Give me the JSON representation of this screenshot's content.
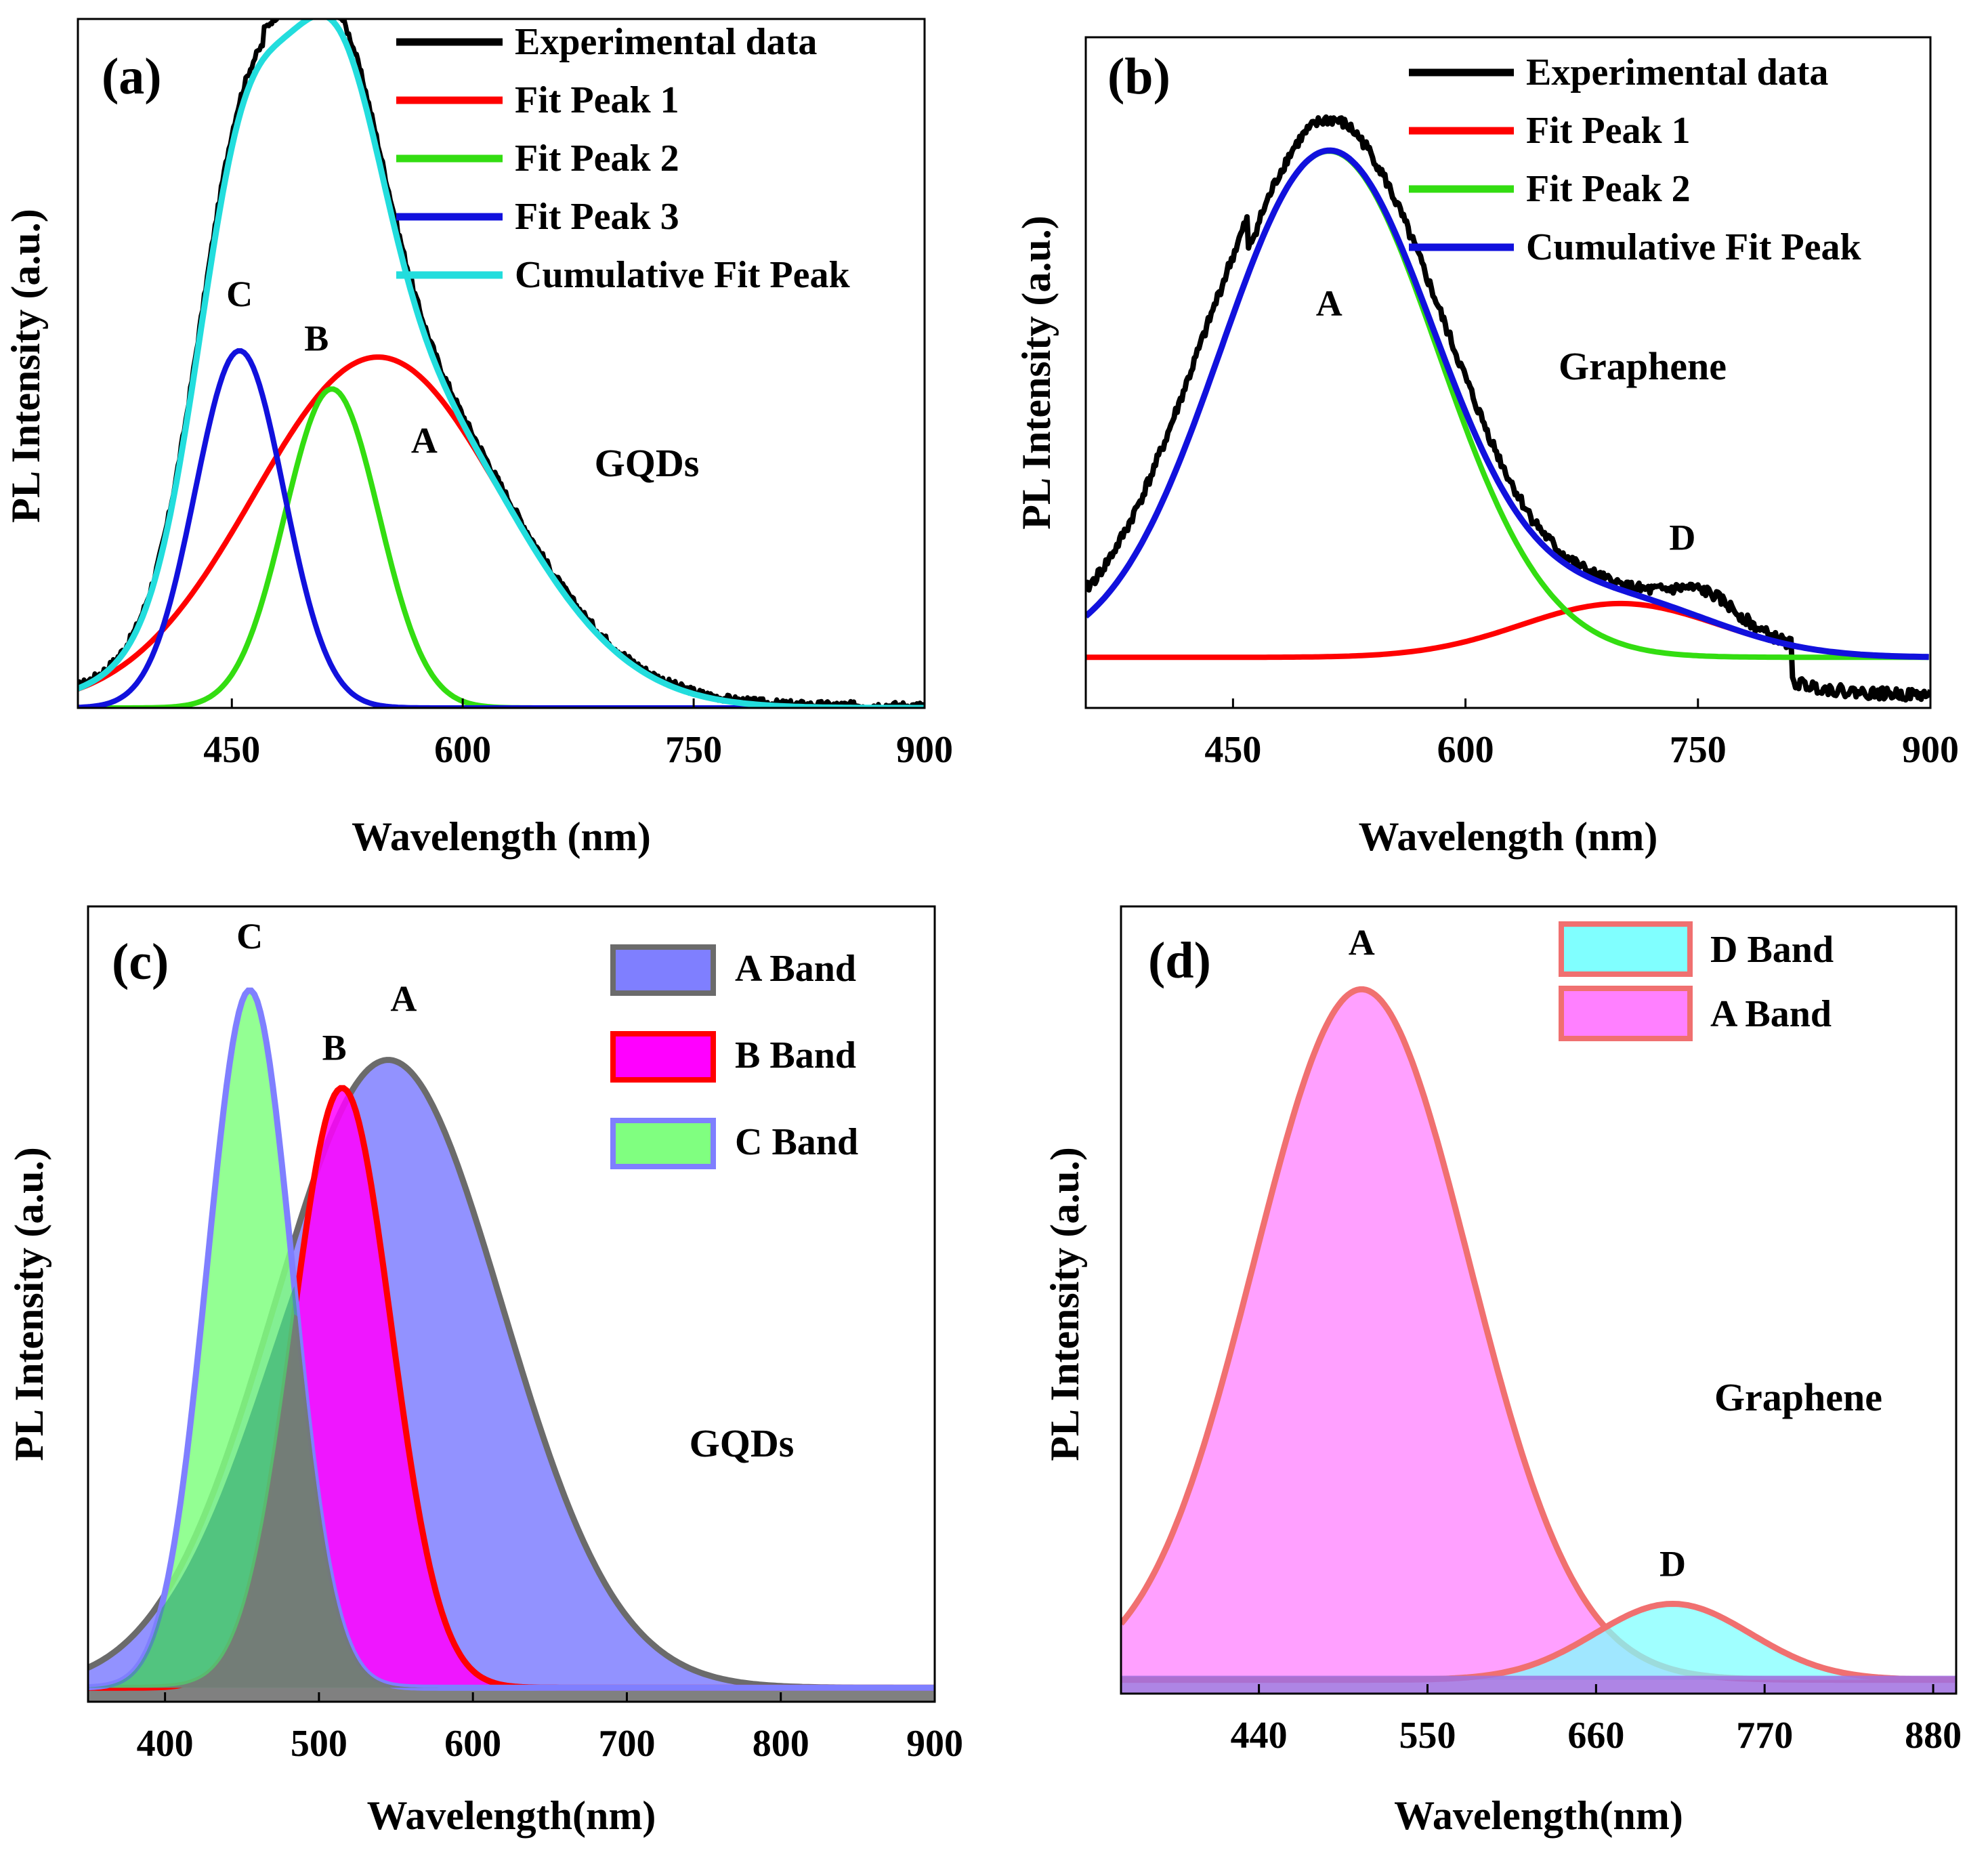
{
  "chart_data": [
    {
      "id": "a",
      "type": "line",
      "panel_label": "(a)",
      "xlabel": "Wavelength (nm)",
      "ylabel": "PL Intensity (a.u.)",
      "xlim": [
        350,
        900
      ],
      "ylim": [
        0,
        1.08
      ],
      "xticks": [
        450,
        600,
        750,
        900
      ],
      "sample_label": "GQDs",
      "series": [
        {
          "name": "Experimental data",
          "color": "#000000",
          "kind": "noisy-sum"
        },
        {
          "name": "Fit Peak 1",
          "color": "#ff0000",
          "center": 545,
          "fwhm": 190,
          "height": 0.55
        },
        {
          "name": "Fit Peak 2",
          "color": "#33dd11",
          "center": 515,
          "fwhm": 72,
          "height": 0.5
        },
        {
          "name": "Fit Peak 3",
          "color": "#1111dd",
          "center": 455,
          "fwhm": 68,
          "height": 0.56
        },
        {
          "name": "Cumulative Fit Peak",
          "color": "#22dddd",
          "kind": "sum"
        }
      ],
      "annotations": [
        {
          "text": "C",
          "x": 455,
          "y": 0.63
        },
        {
          "text": "B",
          "x": 505,
          "y": 0.56
        },
        {
          "text": "A",
          "x": 575,
          "y": 0.4
        }
      ]
    },
    {
      "id": "b",
      "type": "line",
      "panel_label": "(b)",
      "xlabel": "Wavelength (nm)",
      "ylabel": "PL Intensity (a.u.)",
      "xlim": [
        355,
        900
      ],
      "ylim": [
        -0.08,
        0.98
      ],
      "xticks": [
        450,
        600,
        750,
        900
      ],
      "sample_label": "Graphene",
      "series": [
        {
          "name": "Experimental data",
          "color": "#000000",
          "kind": "noisy"
        },
        {
          "name": "Fit Peak 1",
          "color": "#ff0000",
          "center": 700,
          "fwhm": 150,
          "height": 0.085
        },
        {
          "name": "Fit Peak 2",
          "color": "#33dd11",
          "center": 512,
          "fwhm": 165,
          "height": 0.8
        },
        {
          "name": "Cumulative Fit Peak",
          "color": "#1111dd",
          "kind": "sum"
        }
      ],
      "annotations": [
        {
          "text": "A",
          "x": 512,
          "y": 0.54
        },
        {
          "text": "D",
          "x": 740,
          "y": 0.17
        }
      ]
    },
    {
      "id": "c",
      "type": "area",
      "panel_label": "(c)",
      "xlabel": "Wavelength(nm)",
      "ylabel": "PL Intensity (a.u.)",
      "xlim": [
        350,
        900
      ],
      "ylim": [
        -0.02,
        1.12
      ],
      "xticks": [
        400,
        500,
        600,
        700,
        800,
        900
      ],
      "sample_label": "GQDs",
      "series": [
        {
          "name": "A Band",
          "fill": "#7f7fff",
          "stroke": "#6b6b6b",
          "center": 545,
          "fwhm": 175,
          "height": 0.9
        },
        {
          "name": "B  Band",
          "fill": "#ff00ff",
          "stroke": "#ff0000",
          "center": 515,
          "fwhm": 75,
          "height": 0.86
        },
        {
          "name": "C  Band",
          "fill": "#80ff80",
          "stroke": "#7f7fff",
          "center": 455,
          "fwhm": 65,
          "height": 1.0
        }
      ],
      "annotations": [
        {
          "text": "C",
          "x": 455,
          "y": 1.06
        },
        {
          "text": "B",
          "x": 510,
          "y": 0.9
        },
        {
          "text": "A",
          "x": 555,
          "y": 0.97
        }
      ]
    },
    {
      "id": "d",
      "type": "area",
      "panel_label": "(d)",
      "xlabel": "Wavelength(nm)",
      "ylabel": "PL Intensity (a.u.)",
      "xlim": [
        350,
        895
      ],
      "ylim": [
        -0.02,
        1.12
      ],
      "xticks": [
        440,
        550,
        660,
        770,
        880
      ],
      "sample_label": "Graphene",
      "series": [
        {
          "name": "D Band",
          "fill": "#80ffff",
          "stroke": "#f07070",
          "center": 710,
          "fwhm": 120,
          "height": 0.11
        },
        {
          "name": "A Band",
          "fill": "#ff80ff",
          "stroke": "#f07070",
          "center": 507,
          "fwhm": 165,
          "height": 1.0
        }
      ],
      "annotations": [
        {
          "text": "A",
          "x": 507,
          "y": 1.05
        },
        {
          "text": "D",
          "x": 710,
          "y": 0.15
        }
      ]
    }
  ]
}
